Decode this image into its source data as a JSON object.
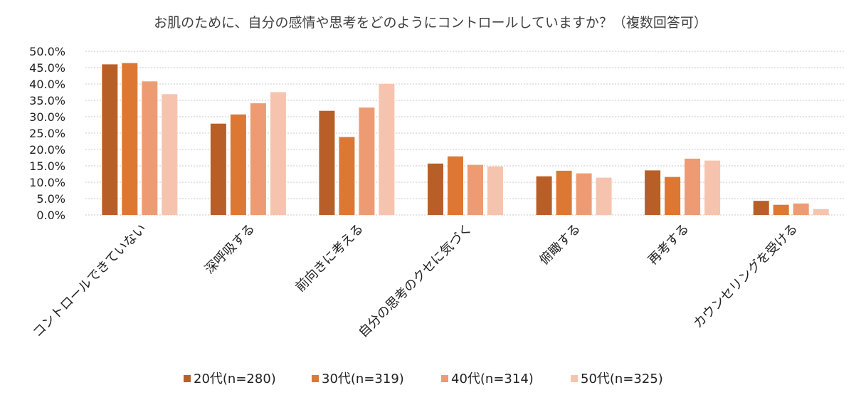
{
  "chart_data": {
    "type": "bar",
    "title": "お肌のために、自分の感情や思考をどのようにコントロールしていますか？（複数回答可）",
    "categories": [
      "コントロールできていない",
      "深呼吸する",
      "前向きに考える",
      "自分の思考のクセに気づく",
      "俯瞰する",
      "再考する",
      "カウンセリングを受ける"
    ],
    "series": [
      {
        "name": "20代(n=280)",
        "color": "#b85f28",
        "values": [
          46.0,
          27.9,
          31.8,
          15.7,
          11.8,
          13.6,
          4.3
        ]
      },
      {
        "name": "30代(n=319)",
        "color": "#dd7734",
        "values": [
          46.4,
          30.7,
          23.8,
          17.9,
          13.5,
          11.6,
          3.1
        ]
      },
      {
        "name": "40代(n=314)",
        "color": "#ee9b73",
        "values": [
          40.8,
          34.1,
          32.8,
          15.3,
          12.7,
          17.2,
          3.5
        ]
      },
      {
        "name": "50代(n=325)",
        "color": "#f6c4ae",
        "values": [
          36.9,
          37.5,
          40.0,
          14.8,
          11.4,
          16.6,
          1.8
        ]
      }
    ],
    "yticks": [
      "0.0%",
      "5.0%",
      "10.0%",
      "15.0%",
      "20.0%",
      "25.0%",
      "30.0%",
      "35.0%",
      "40.0%",
      "45.0%",
      "50.0%"
    ],
    "ylim": [
      0,
      50
    ],
    "ylabel": "",
    "xlabel": "",
    "grid": true,
    "legend": "bottom"
  }
}
